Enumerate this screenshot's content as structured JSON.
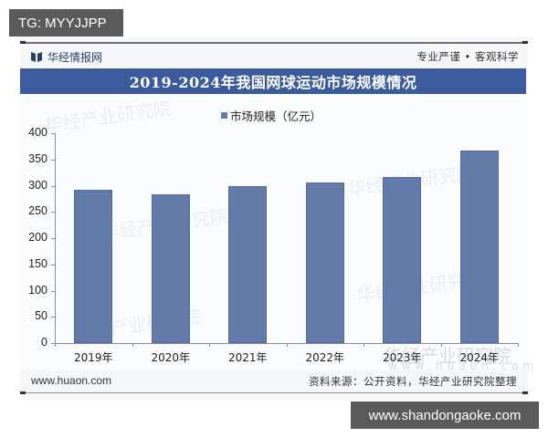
{
  "overlays": {
    "top_left": "TG: MYYJJPP",
    "bottom_right": "www.shandongaoke.com"
  },
  "header": {
    "brand_name": "华经情报网",
    "brand_icon": "book-logo-icon",
    "slogan": "专业严谨 • 客观科学"
  },
  "title": "2019-2024年我国网球运动市场规模情况",
  "legend": {
    "label": "市场规模（亿元）",
    "color": "#637ba8"
  },
  "footer": {
    "website": "www.huaon.com",
    "source": "资料来源：公开资料，华经产业研究院整理"
  },
  "watermark": {
    "text": "华经产业研究院",
    "url": "www.huaon.com"
  },
  "colors": {
    "title_bar": "#3b5b9c",
    "bar": "#637ba8",
    "axis": "#8a8d93"
  },
  "chart_data": {
    "type": "bar",
    "title": "2019-2024年我国网球运动市场规模情况",
    "categories": [
      "2019年",
      "2020年",
      "2021年",
      "2022年",
      "2023年",
      "2024年"
    ],
    "series": [
      {
        "name": "市场规模（亿元）",
        "values": [
          292,
          283,
          299,
          306,
          317,
          367
        ]
      }
    ],
    "xlabel": "",
    "ylabel": "",
    "ylim": [
      0,
      400
    ],
    "yticks": [
      0,
      50,
      100,
      150,
      200,
      250,
      300,
      350,
      400
    ],
    "grid": false,
    "legend_position": "top-center"
  }
}
